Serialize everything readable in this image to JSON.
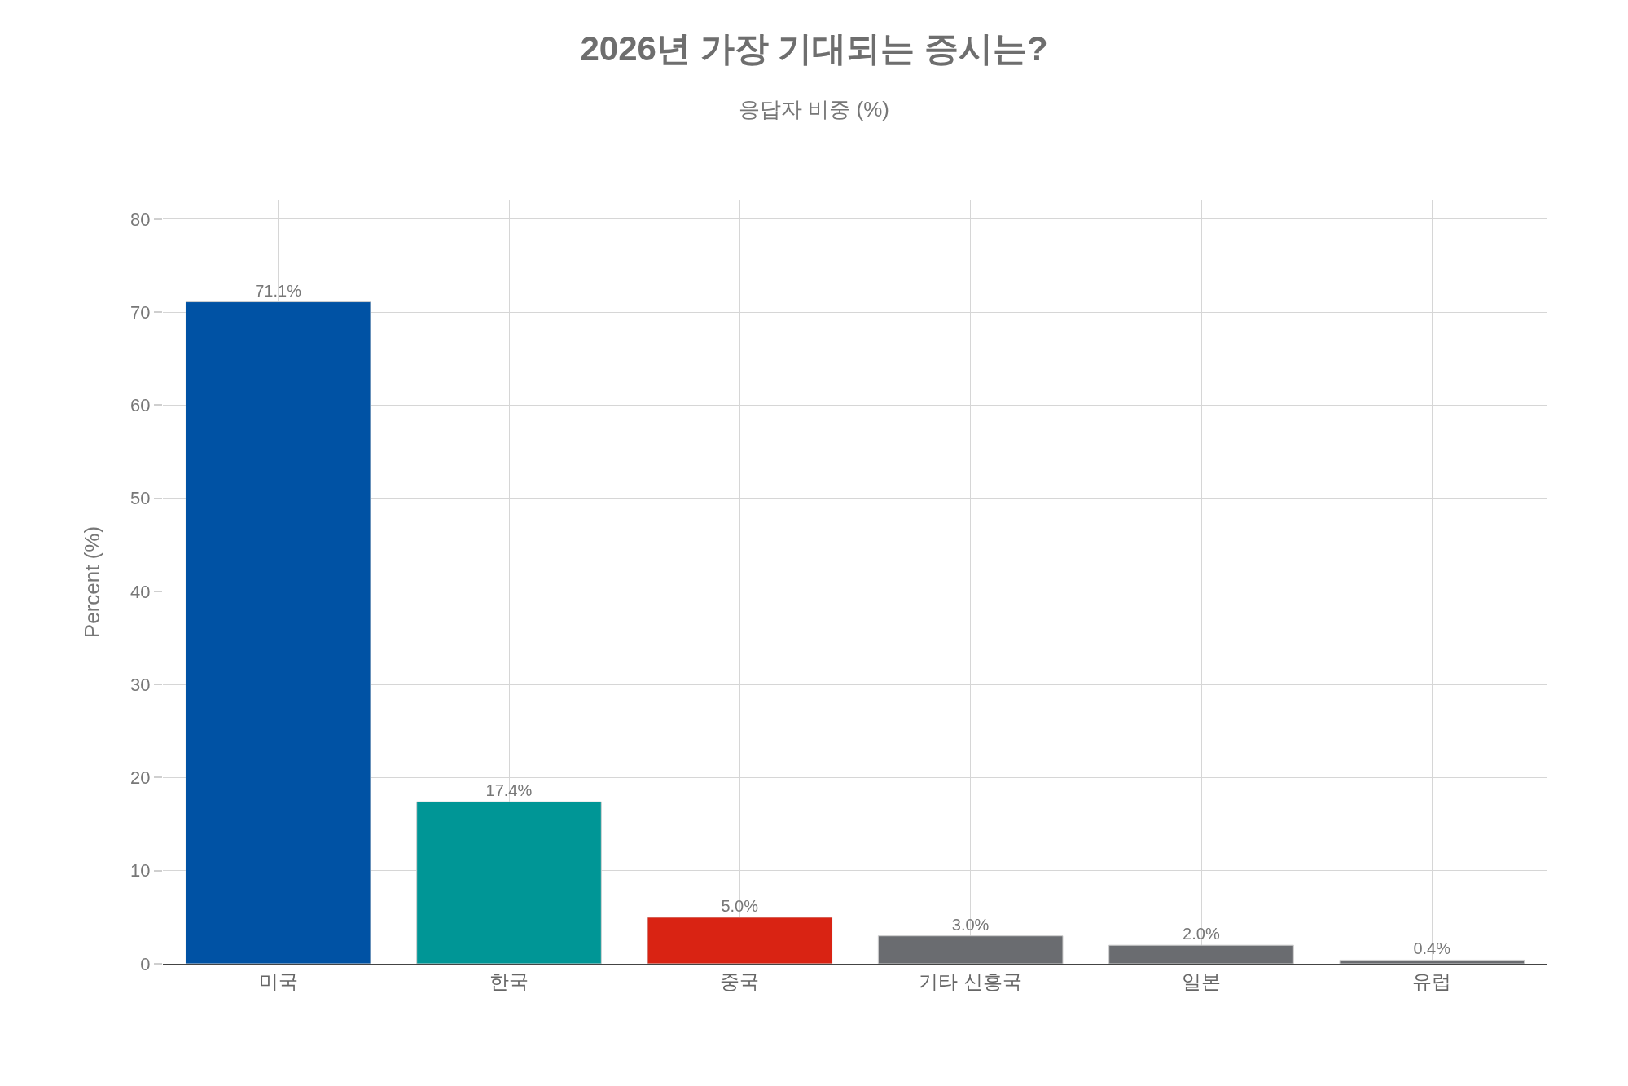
{
  "chart_data": {
    "type": "bar",
    "title": "2026년 가장 기대되는 증시는?",
    "subtitle": "응답자 비중 (%)",
    "ylabel": "Percent (%)",
    "categories": [
      "미국",
      "한국",
      "중국",
      "기타 신흥국",
      "일본",
      "유럽"
    ],
    "values": [
      71.1,
      17.4,
      5.0,
      3.0,
      2.0,
      0.4
    ],
    "colors": [
      "#0052a4",
      "#009696",
      "#d92313",
      "#6a6c70",
      "#6a6c70",
      "#6a6c70"
    ],
    "value_labels": [
      "71.1%",
      "17.4%",
      "5.0%",
      "3.0%",
      "2.0%",
      "0.4%"
    ],
    "ylim": [
      0,
      82
    ],
    "yticks": [
      0,
      10,
      20,
      30,
      40,
      50,
      60,
      70,
      80
    ],
    "grid": true
  }
}
